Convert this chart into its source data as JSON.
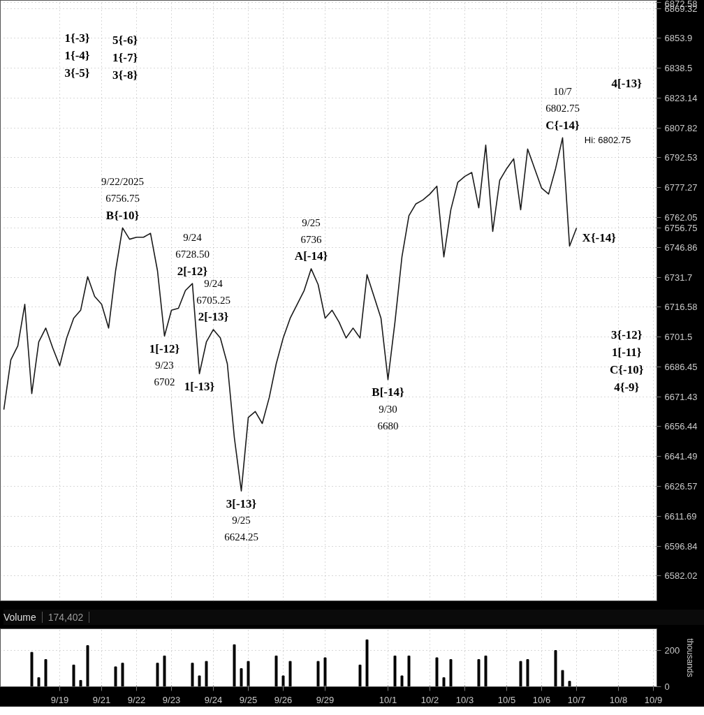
{
  "chart_data": [
    {
      "type": "line",
      "log": true,
      "grid": true,
      "tick_labels": "y",
      "line_style": "solid",
      "marker": "none",
      "categories": [
        null,
        null,
        null,
        null,
        null,
        null,
        null,
        null,
        null,
        null,
        null,
        null,
        null,
        null,
        null,
        null,
        null,
        null,
        null,
        null,
        null,
        null,
        null,
        null,
        null,
        null,
        null,
        null,
        null,
        null,
        null,
        null,
        null,
        null,
        null,
        null,
        null,
        null,
        null,
        null,
        null,
        null,
        null,
        null,
        null,
        null,
        null,
        null,
        null,
        null,
        null,
        null,
        null,
        null,
        null,
        null,
        null,
        null,
        null,
        null,
        null,
        null,
        null,
        null,
        null,
        null,
        null,
        null,
        null,
        null,
        null,
        null,
        null,
        null,
        null,
        null,
        null,
        null,
        null,
        null,
        null,
        null,
        null,
        null,
        null,
        null,
        null,
        null,
        null,
        null,
        null,
        null,
        null,
        null
      ],
      "ylim": [
        6569.7,
        6873.5
      ],
      "yticks": [
        6872.58,
        6869.32,
        6853.9,
        6838.5,
        6823.14,
        6807.82,
        6792.53,
        6777.27,
        6762.05,
        6756.75,
        6746.86,
        6731.7,
        6716.58,
        6701.5,
        6686.45,
        6671.43,
        6656.44,
        6641.49,
        6626.57,
        6611.69,
        6596.84,
        6582.02
      ],
      "series": [
        {
          "color": "#1a1a1a",
          "values": [
            6665,
            6690,
            6697,
            6718,
            6673,
            6699,
            6706,
            6696,
            6687,
            6701,
            6711,
            6715,
            6732,
            6722,
            6718,
            6706,
            6735,
            6756.75,
            6751,
            6752,
            6752,
            6754,
            6735,
            6702,
            6715,
            6716,
            6725,
            6728.5,
            6683,
            6699,
            6705.25,
            6701,
            6688,
            6651,
            6624.25,
            6661,
            6664,
            6658,
            6671,
            6688,
            6701,
            6711,
            6718,
            6725,
            6736,
            6728,
            6711,
            6715,
            6709,
            6701,
            6706,
            6701,
            6733,
            6722,
            6711,
            6680,
            6709,
            6742,
            6763,
            6769,
            6771,
            6774,
            6778,
            6742,
            6766,
            6780,
            6783,
            6785,
            6767,
            6799,
            6755,
            6781,
            6787,
            6792,
            6766,
            6797,
            6787,
            6777,
            6774,
            6787,
            6802.75,
            6747.5,
            6756.75,
            null,
            null,
            null,
            null,
            null,
            null,
            null,
            null,
            null,
            null,
            null
          ]
        }
      ],
      "annotations": [
        {
          "text": "9/22/2025\n6756.75\nB{-10}",
          "y": 6756.75
        },
        {
          "text": "1[-12}\n9/23\n6702",
          "y": 6702
        },
        {
          "text": "9/24\n6728.50\n2[-12}",
          "y": 6728.5
        },
        {
          "text": "9/24\n6705.25\n2[-13}",
          "y": 6705.25
        },
        {
          "text": "1[-13}",
          "y": 6683
        },
        {
          "text": "3[-13}\n9/25\n6624.25",
          "y": 6624.25
        },
        {
          "text": "9/25\n6736\nA[-14}",
          "y": 6736
        },
        {
          "text": "B[-14}\n9/30\n6680",
          "y": 6680
        },
        {
          "text": "10/7\n6802.75\nC{-14}",
          "y": 6802.75
        },
        "1{-3}\n1{-4}\n3{-5}",
        "5{-6}\n1{-7}\n3{-8}",
        "Hi: 6802.75",
        "4[-13}",
        "X{-14}",
        "3{-12}\n1[-11}\nC{-10}\n4{-9}"
      ]
    },
    {
      "type": "bar",
      "title": "Volume",
      "subtitle": "174,402",
      "ylabel": "thousands",
      "grid": true,
      "color": "#000000",
      "categories": [
        null,
        null,
        null,
        null,
        null,
        null,
        null,
        null,
        "9/19",
        null,
        null,
        null,
        null,
        null,
        "9/21",
        null,
        null,
        null,
        null,
        "9/22",
        null,
        null,
        null,
        null,
        "9/23",
        null,
        null,
        null,
        null,
        null,
        "9/24",
        null,
        null,
        null,
        null,
        "9/25",
        null,
        null,
        null,
        null,
        "9/26",
        null,
        null,
        null,
        null,
        null,
        "9/29",
        null,
        null,
        null,
        null,
        null,
        null,
        null,
        null,
        "10/1",
        null,
        null,
        null,
        null,
        null,
        "10/2",
        null,
        null,
        null,
        null,
        "10/3",
        null,
        null,
        null,
        null,
        null,
        "10/5",
        null,
        null,
        null,
        null,
        "10/6",
        null,
        null,
        null,
        null,
        "10/7",
        null,
        null,
        null,
        null,
        null,
        "10/8",
        null,
        null,
        null,
        null,
        "10/9"
      ],
      "ylim": [
        0,
        320
      ],
      "yticks": [
        0,
        200
      ],
      "values": [
        null,
        null,
        null,
        null,
        190,
        50,
        150,
        null,
        null,
        null,
        120,
        35,
        227,
        null,
        null,
        null,
        110,
        130,
        null,
        null,
        null,
        null,
        130,
        170,
        null,
        null,
        null,
        130,
        60,
        140,
        null,
        null,
        null,
        232,
        100,
        140,
        null,
        null,
        null,
        170,
        60,
        140,
        null,
        null,
        null,
        140,
        160,
        null,
        null,
        null,
        null,
        120,
        259,
        null,
        null,
        null,
        170,
        60,
        170,
        null,
        null,
        null,
        160,
        50,
        150,
        null,
        null,
        null,
        150,
        170,
        null,
        null,
        null,
        null,
        140,
        150,
        null,
        null,
        null,
        200,
        90,
        30,
        null,
        null,
        null,
        null,
        null,
        null,
        null,
        null,
        null,
        null,
        null,
        null
      ]
    }
  ]
}
